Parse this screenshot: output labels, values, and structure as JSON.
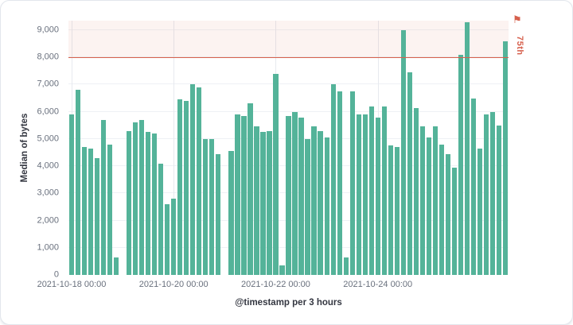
{
  "panel": {
    "background": "#ffffff",
    "border_color": "#e2e6ec"
  },
  "chart_data": {
    "type": "bar",
    "title": "",
    "xlabel": "@timestamp per 3 hours",
    "ylabel": "Median of bytes",
    "ylim": [
      0,
      9350
    ],
    "grid": true,
    "legend": "none",
    "bar_color": "#54b399",
    "values": [
      5900,
      6800,
      4700,
      4650,
      4300,
      5700,
      4800,
      650,
      0,
      5300,
      5600,
      5700,
      5250,
      5200,
      4100,
      2600,
      2800,
      6450,
      6400,
      7000,
      6900,
      5000,
      5000,
      4450,
      0,
      4550,
      5900,
      5850,
      6300,
      5450,
      5250,
      5300,
      7400,
      350,
      5850,
      6000,
      5800,
      5000,
      5450,
      5300,
      5050,
      7000,
      6750,
      650,
      6750,
      5900,
      5900,
      6200,
      5800,
      6200,
      4750,
      4700,
      9000,
      7450,
      6150,
      5450,
      5050,
      5450,
      4800,
      4450,
      3950,
      8100,
      9300,
      6500,
      4650,
      5900,
      6000,
      5500,
      8600
    ],
    "x_ticks": [
      {
        "index": 0,
        "label": "2021-10-18 00:00"
      },
      {
        "index": 16,
        "label": "2021-10-20 00:00"
      },
      {
        "index": 32,
        "label": "2021-10-22 00:00"
      },
      {
        "index": 48,
        "label": "2021-10-24 00:00"
      }
    ],
    "y_ticks": [
      {
        "value": 0,
        "label": "0"
      },
      {
        "value": 1000,
        "label": "1,000"
      },
      {
        "value": 2000,
        "label": "2,000"
      },
      {
        "value": 3000,
        "label": "3,000"
      },
      {
        "value": 4000,
        "label": "4,000"
      },
      {
        "value": 5000,
        "label": "5,000"
      },
      {
        "value": 6000,
        "label": "6,000"
      },
      {
        "value": 7000,
        "label": "7,000"
      },
      {
        "value": 8000,
        "label": "8,000"
      },
      {
        "value": 9000,
        "label": "9,000"
      }
    ],
    "annotation": {
      "type": "threshold-region",
      "label": "75th",
      "value": 8000,
      "line_color": "#d6604d",
      "fill_color": "rgba(214,96,77,0.08)",
      "flag_glyph": "⚑"
    }
  }
}
